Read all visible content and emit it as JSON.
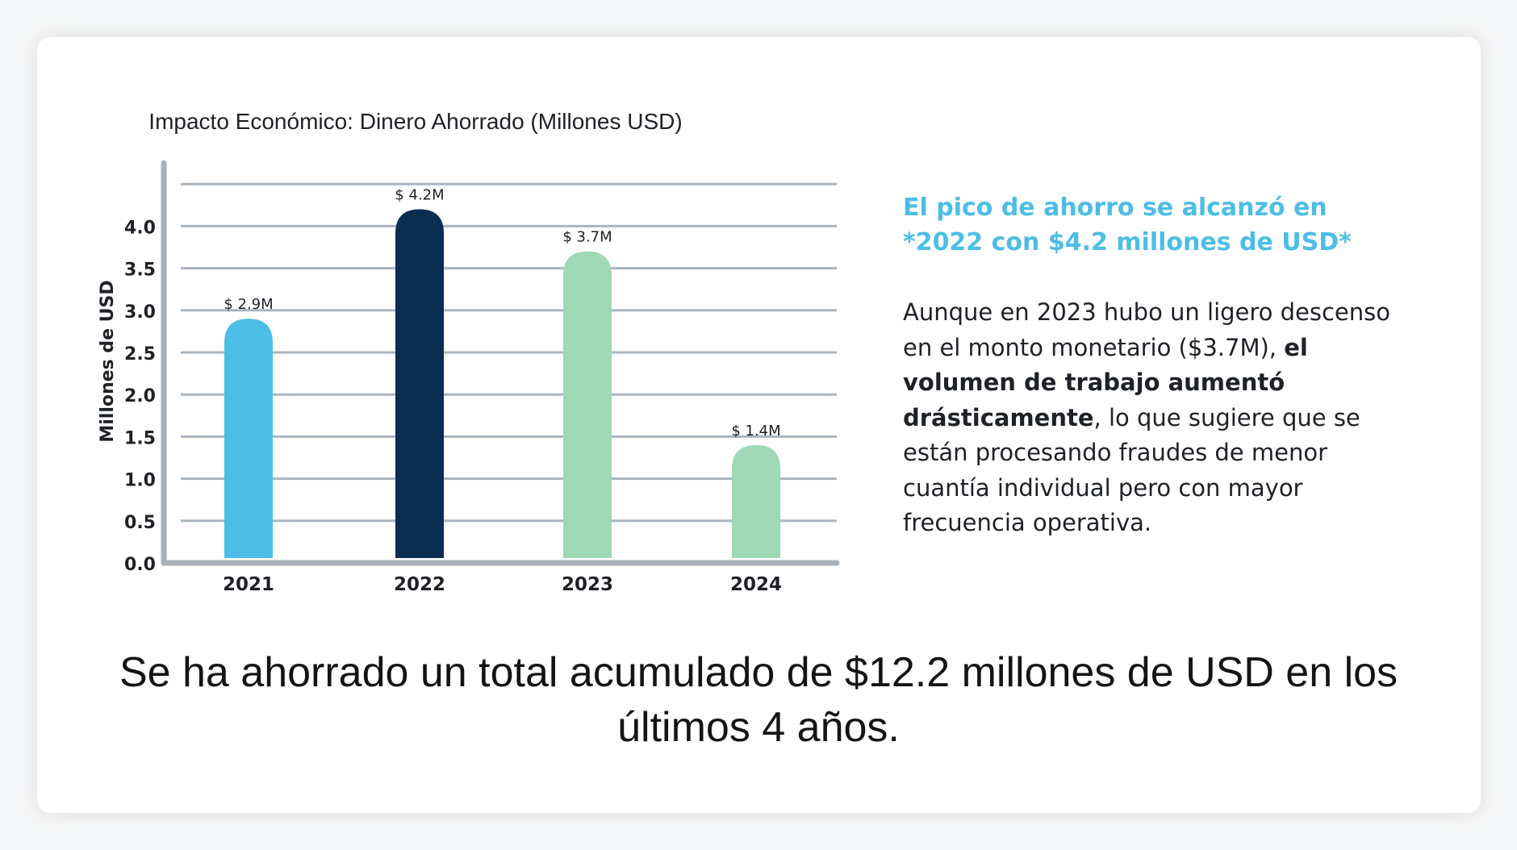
{
  "chart_data": {
    "type": "bar",
    "title": "Impacto Económico: Dinero Ahorrado (Millones USD)",
    "ylabel": "Millones de USD",
    "xlabel": "",
    "categories": [
      "2021",
      "2022",
      "2023",
      "2024"
    ],
    "values": [
      2.9,
      4.2,
      3.7,
      1.4
    ],
    "data_labels": [
      "$ 2.9M",
      "$ 4.2M",
      "$ 3.7M",
      "$ 1.4M"
    ],
    "bar_colors": [
      "#4cbde6",
      "#0c2d52",
      "#9ed8b5",
      "#9ed8b5"
    ],
    "yticks": [
      "0.0",
      "0.5",
      "1.0",
      "1.5",
      "2.0",
      "2.5",
      "3.0",
      "3.5",
      "4.0"
    ],
    "ylim": [
      0,
      4.5
    ],
    "grid": true,
    "gridline_color": "#aab4be",
    "axis_color": "#a7b1bc"
  },
  "insight": {
    "heading": "El pico de ahorro se alcanzó en *2022 con $4.2 millones de USD*",
    "body_part1": "Aunque en 2023 hubo un ligero descenso en el monto monetario ($3.7M), ",
    "body_bold": "el volumen de trabajo aumentó drásticamente",
    "body_part2": ", lo que sugiere que se están procesando fraudes de menor cuantía individual pero con mayor frecuencia operativa."
  },
  "summary": {
    "text": "Se ha ahorrado un total acumulado de $12.2 millones de USD en los últimos 4 años."
  },
  "colors": {
    "accent": "#4cbde6",
    "text": "#1e2126"
  }
}
